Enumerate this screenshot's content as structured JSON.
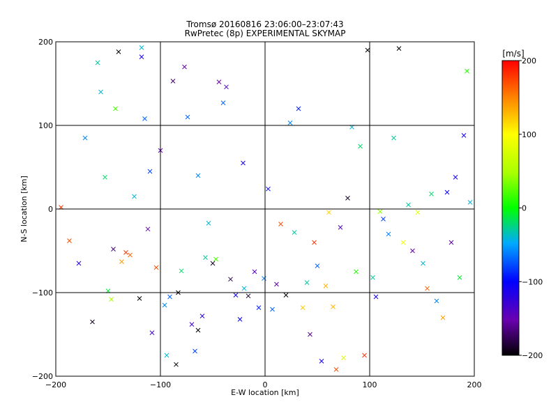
{
  "chart_data": {
    "type": "scatter",
    "title": "Tromsø 20160816 23:06:00–23:07:43",
    "subtitle": "RwPretec (8p) EXPERIMENTAL SKYMAP",
    "xlabel": "E-W location [km]",
    "ylabel": "N-S location [km]",
    "xlim": [
      -200,
      200
    ],
    "ylim": [
      -200,
      200
    ],
    "xticks": [
      -200,
      -100,
      0,
      100,
      200
    ],
    "yticks": [
      -200,
      -100,
      0,
      100,
      200
    ],
    "grid": true,
    "colorbar": {
      "label": "[m/s]",
      "min": -200,
      "max": 200,
      "ticks": [
        -200,
        -100,
        0,
        100,
        200
      ],
      "colormap": "black-purple-blue-cyan-green-yellow-red"
    },
    "markers": [
      "dot",
      "x"
    ],
    "points": [
      [
        -195,
        2,
        180,
        "x"
      ],
      [
        -187,
        -38,
        170,
        "x"
      ],
      [
        -178,
        -65,
        -120,
        "x"
      ],
      [
        -172,
        85,
        -60,
        "x"
      ],
      [
        -165,
        -135,
        -190,
        "x"
      ],
      [
        -160,
        175,
        -30,
        "x"
      ],
      [
        -157,
        140,
        -40,
        "x"
      ],
      [
        -153,
        38,
        -20,
        "x"
      ],
      [
        -150,
        -98,
        -10,
        "x"
      ],
      [
        -147,
        -108,
        50,
        "x"
      ],
      [
        -145,
        -48,
        -170,
        "x"
      ],
      [
        -143,
        120,
        20,
        "x"
      ],
      [
        -140,
        188,
        -200,
        "x"
      ],
      [
        -137,
        -63,
        140,
        "x"
      ],
      [
        -133,
        -52,
        180,
        "x"
      ],
      [
        -129,
        -55,
        160,
        "x"
      ],
      [
        -125,
        15,
        -40,
        "x"
      ],
      [
        -120,
        -107,
        -200,
        "x"
      ],
      [
        -118,
        182,
        -110,
        "x"
      ],
      [
        -115,
        108,
        -70,
        "x"
      ],
      [
        -112,
        -24,
        -150,
        "x"
      ],
      [
        -110,
        45,
        -80,
        "x"
      ],
      [
        -108,
        -148,
        -130,
        "x"
      ],
      [
        -104,
        -70,
        170,
        "x"
      ],
      [
        -100,
        70,
        -150,
        "x"
      ],
      [
        -96,
        -115,
        -60,
        "x"
      ],
      [
        -94,
        -175,
        -40,
        "x"
      ],
      [
        -91,
        -105,
        -70,
        "x"
      ],
      [
        -88,
        153,
        -170,
        "x"
      ],
      [
        -85,
        -186,
        -200,
        "x"
      ],
      [
        -83,
        -100,
        -200,
        "x"
      ],
      [
        -80,
        -74,
        -20,
        "x"
      ],
      [
        -77,
        170,
        -150,
        "x"
      ],
      [
        -74,
        110,
        -70,
        "x"
      ],
      [
        -70,
        -138,
        -130,
        "x"
      ],
      [
        -67,
        -170,
        -80,
        "x"
      ],
      [
        -64,
        -145,
        -200,
        "x"
      ],
      [
        -60,
        -128,
        -120,
        "x"
      ],
      [
        -57,
        -58,
        -30,
        "x"
      ],
      [
        -54,
        -17,
        -40,
        "x"
      ],
      [
        -50,
        -65,
        -190,
        "x"
      ],
      [
        -47,
        -60,
        20,
        "x"
      ],
      [
        -44,
        152,
        -150,
        "x"
      ],
      [
        -40,
        127,
        -70,
        "x"
      ],
      [
        -37,
        146,
        -140,
        "x"
      ],
      [
        -33,
        -84,
        -180,
        "x"
      ],
      [
        -28,
        -103,
        -110,
        "x"
      ],
      [
        -24,
        -132,
        -100,
        "x"
      ],
      [
        -20,
        -95,
        -40,
        "x"
      ],
      [
        -16,
        -104,
        -190,
        "x"
      ],
      [
        -10,
        -75,
        -140,
        "x"
      ],
      [
        -6,
        -118,
        -90,
        "x"
      ],
      [
        -1,
        -83,
        -60,
        "x"
      ],
      [
        3,
        24,
        -100,
        "x"
      ],
      [
        7,
        -120,
        -70,
        "x"
      ],
      [
        11,
        -90,
        -150,
        "x"
      ],
      [
        15,
        -18,
        170,
        "x"
      ],
      [
        20,
        -103,
        -200,
        "x"
      ],
      [
        24,
        103,
        -60,
        "x"
      ],
      [
        28,
        -28,
        -30,
        "x"
      ],
      [
        32,
        120,
        -90,
        "x"
      ],
      [
        36,
        -118,
        120,
        "x"
      ],
      [
        40,
        -88,
        -30,
        "x"
      ],
      [
        43,
        -150,
        -160,
        "x"
      ],
      [
        47,
        -40,
        180,
        "x"
      ],
      [
        50,
        -68,
        -70,
        "x"
      ],
      [
        54,
        -182,
        -110,
        "x"
      ],
      [
        58,
        -92,
        130,
        "x"
      ],
      [
        61,
        -4,
        120,
        "x"
      ],
      [
        65,
        -117,
        130,
        "x"
      ],
      [
        68,
        -192,
        170,
        "x"
      ],
      [
        72,
        -22,
        -140,
        "x"
      ],
      [
        75,
        -178,
        80,
        "x"
      ],
      [
        79,
        13,
        -190,
        "x"
      ],
      [
        83,
        98,
        -40,
        "x"
      ],
      [
        87,
        -75,
        10,
        "x"
      ],
      [
        91,
        75,
        -20,
        "x"
      ],
      [
        95,
        -175,
        180,
        "x"
      ],
      [
        98,
        190,
        -200,
        "x"
      ],
      [
        103,
        -82,
        -30,
        "x"
      ],
      [
        106,
        -105,
        -110,
        "x"
      ],
      [
        110,
        -3,
        40,
        "x"
      ],
      [
        113,
        -12,
        -80,
        "x"
      ],
      [
        118,
        -30,
        -60,
        "x"
      ],
      [
        123,
        85,
        -30,
        "x"
      ],
      [
        128,
        192,
        -200,
        "x"
      ],
      [
        132,
        -40,
        90,
        "x"
      ],
      [
        137,
        5,
        -30,
        "x"
      ],
      [
        141,
        -50,
        -150,
        "x"
      ],
      [
        146,
        -4,
        80,
        "x"
      ],
      [
        151,
        -65,
        -40,
        "x"
      ],
      [
        155,
        -95,
        160,
        "x"
      ],
      [
        159,
        18,
        -20,
        "x"
      ],
      [
        164,
        -110,
        -60,
        "x"
      ],
      [
        170,
        -130,
        140,
        "x"
      ],
      [
        174,
        20,
        -100,
        "x"
      ],
      [
        178,
        -40,
        -160,
        "x"
      ],
      [
        182,
        38,
        -110,
        "x"
      ],
      [
        186,
        -82,
        -10,
        "x"
      ],
      [
        190,
        88,
        -110,
        "x"
      ],
      [
        193,
        165,
        10,
        "x"
      ],
      [
        196,
        8,
        -40,
        "x"
      ],
      [
        -118,
        193,
        -40,
        "x"
      ],
      [
        -64,
        40,
        -60,
        "x"
      ],
      [
        -21,
        55,
        -110,
        "x"
      ]
    ]
  }
}
